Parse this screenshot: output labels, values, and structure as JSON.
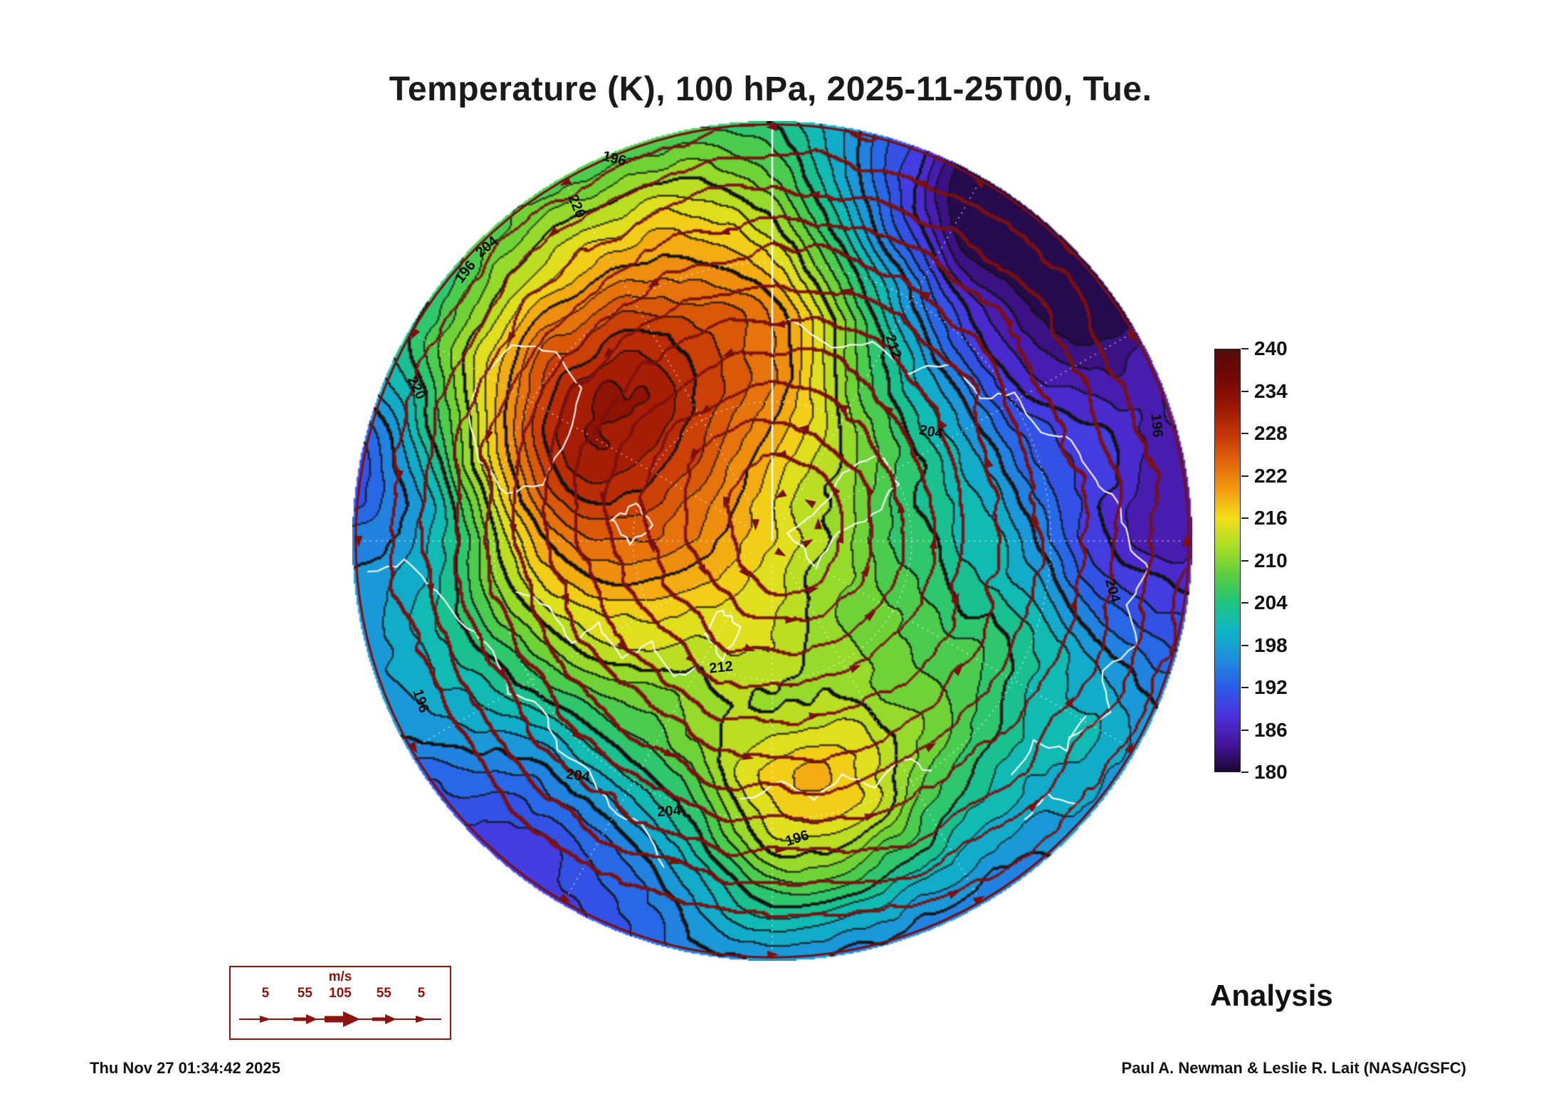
{
  "title": "Temperature (K), 100 hPa, 2025-11-25T00, Tue.",
  "analysis_label": "Analysis",
  "footer": {
    "timestamp": "Thu Nov 27 01:34:42 2025",
    "credit": "Paul A. Newman & Leslie R. Lait (NASA/GSFC)"
  },
  "wind_legend": {
    "unit": "m/s",
    "values": [
      "5",
      "55",
      "105",
      "55",
      "5"
    ]
  },
  "colorbar": {
    "ticks": [
      "240",
      "234",
      "228",
      "222",
      "216",
      "210",
      "204",
      "198",
      "192",
      "186",
      "180"
    ],
    "min": 180,
    "max": 240
  },
  "chart_data": {
    "type": "heatmap",
    "title": "Temperature (K), 100 hPa, 2025-11-25T00, Tue.",
    "quantity": "Temperature",
    "units": "K",
    "level": "100 hPa",
    "valid_time": "2025-11-25T00, Tue.",
    "product": "Analysis",
    "projection": "north-polar-stereographic",
    "colorbar_ticks": [
      240,
      234,
      228,
      222,
      216,
      210,
      204,
      198,
      192,
      186,
      180
    ],
    "value_range": [
      180,
      240
    ],
    "contour_interval_K": 2,
    "labeled_contour_levels_K": [
      196,
      204,
      212,
      220
    ],
    "wind_scale_ms": [
      5,
      55,
      105,
      55,
      5
    ],
    "wind_units": "m/s",
    "wind_color": "#7a1010",
    "coastline_color": "#ffffff",
    "colormap": [
      [
        180,
        "#1b0733"
      ],
      [
        184,
        "#46149e"
      ],
      [
        188,
        "#4b32dd"
      ],
      [
        192,
        "#2b5ce8"
      ],
      [
        196,
        "#1f8ede"
      ],
      [
        200,
        "#0db6c3"
      ],
      [
        204,
        "#1ec47e"
      ],
      [
        208,
        "#5ccf3e"
      ],
      [
        212,
        "#a9de25"
      ],
      [
        216,
        "#f2df1b"
      ],
      [
        220,
        "#f39c10"
      ],
      [
        224,
        "#e2650a"
      ],
      [
        228,
        "#c33406"
      ],
      [
        232,
        "#9a1504"
      ],
      [
        236,
        "#730705"
      ],
      [
        240,
        "#550b0b"
      ]
    ],
    "field": {
      "base": 210,
      "edge_cooling": 10,
      "blobs": [
        {
          "x": -0.38,
          "y": -0.3,
          "sigma": 0.4,
          "amp": 16
        },
        {
          "x": -0.48,
          "y": -0.28,
          "sigma": 0.18,
          "amp": 6
        },
        {
          "x": -0.05,
          "y": -0.62,
          "sigma": 0.3,
          "amp": 6
        },
        {
          "x": 0.12,
          "y": 0.7,
          "sigma": 0.2,
          "amp": 15
        },
        {
          "x": 0.6,
          "y": -0.72,
          "sigma": 0.3,
          "amp": -26
        },
        {
          "x": 0.97,
          "y": -0.05,
          "sigma": 0.25,
          "amp": -16
        },
        {
          "x": -0.93,
          "y": -0.15,
          "sigma": 0.22,
          "amp": -14
        },
        {
          "x": -0.55,
          "y": 0.72,
          "sigma": 0.3,
          "amp": -12
        },
        {
          "x": 0.25,
          "y": 0.92,
          "sigma": 0.28,
          "amp": -10
        },
        {
          "x": 0.4,
          "y": -0.05,
          "sigma": 0.26,
          "amp": -8
        }
      ]
    },
    "streamlines": {
      "center": [
        0.06,
        -0.04
      ],
      "level_start": 0.1,
      "level_step": 0.077,
      "count": 12
    },
    "contour_labels": [
      {
        "text": "196",
        "x": 0.312,
        "y": 0.045,
        "rot": 14
      },
      {
        "text": "220",
        "x": 0.267,
        "y": 0.102,
        "rot": 68
      },
      {
        "text": "204",
        "x": 0.16,
        "y": 0.15,
        "rot": -40
      },
      {
        "text": "196",
        "x": 0.135,
        "y": 0.18,
        "rot": -52
      },
      {
        "text": "220",
        "x": 0.076,
        "y": 0.318,
        "rot": 64
      },
      {
        "text": "212",
        "x": 0.644,
        "y": 0.269,
        "rot": 72
      },
      {
        "text": "204",
        "x": 0.689,
        "y": 0.37,
        "rot": 10
      },
      {
        "text": "196",
        "x": 0.958,
        "y": 0.363,
        "rot": 85
      },
      {
        "text": "204",
        "x": 0.905,
        "y": 0.559,
        "rot": 75
      },
      {
        "text": "212",
        "x": 0.439,
        "y": 0.651,
        "rot": -6
      },
      {
        "text": "204",
        "x": 0.269,
        "y": 0.78,
        "rot": 8
      },
      {
        "text": "196",
        "x": 0.081,
        "y": 0.691,
        "rot": 72
      },
      {
        "text": "204",
        "x": 0.377,
        "y": 0.822,
        "rot": -4
      },
      {
        "text": "196",
        "x": 0.53,
        "y": 0.854,
        "rot": -18
      }
    ],
    "coastlines": [
      [
        [
          -0.7,
          -0.38
        ],
        [
          -0.62,
          -0.47
        ],
        [
          -0.52,
          -0.45
        ],
        [
          -0.46,
          -0.36
        ],
        [
          -0.49,
          -0.25
        ],
        [
          -0.55,
          -0.14
        ],
        [
          -0.63,
          -0.11
        ],
        [
          -0.7,
          -0.19
        ],
        [
          -0.73,
          -0.3
        ],
        [
          -0.7,
          -0.38
        ]
      ],
      [
        [
          -0.38,
          -0.05
        ],
        [
          -0.33,
          -0.09
        ],
        [
          -0.29,
          -0.04
        ],
        [
          -0.34,
          0.01
        ],
        [
          -0.38,
          -0.05
        ]
      ],
      [
        [
          -0.97,
          0.08
        ],
        [
          -0.88,
          0.05
        ],
        [
          -0.8,
          0.12
        ],
        [
          -0.73,
          0.21
        ],
        [
          -0.67,
          0.26
        ],
        [
          -0.63,
          0.36
        ],
        [
          -0.55,
          0.4
        ],
        [
          -0.51,
          0.5
        ],
        [
          -0.44,
          0.55
        ],
        [
          -0.39,
          0.64
        ],
        [
          -0.31,
          0.68
        ],
        [
          -0.26,
          0.78
        ]
      ],
      [
        [
          -0.61,
          0.12
        ],
        [
          -0.53,
          0.16
        ],
        [
          -0.48,
          0.24
        ],
        [
          -0.42,
          0.2
        ],
        [
          -0.36,
          0.28
        ],
        [
          -0.29,
          0.24
        ],
        [
          -0.24,
          0.33
        ],
        [
          -0.18,
          0.3
        ]
      ],
      [
        [
          0.04,
          -0.53
        ],
        [
          0.14,
          -0.46
        ],
        [
          0.24,
          -0.48
        ],
        [
          0.33,
          -0.4
        ],
        [
          0.42,
          -0.43
        ],
        [
          0.5,
          -0.34
        ],
        [
          0.58,
          -0.36
        ],
        [
          0.64,
          -0.26
        ],
        [
          0.72,
          -0.24
        ],
        [
          0.77,
          -0.14
        ],
        [
          0.83,
          -0.1
        ],
        [
          0.85,
          0.0
        ],
        [
          0.9,
          0.07
        ],
        [
          0.85,
          0.15
        ],
        [
          0.87,
          0.25
        ],
        [
          0.79,
          0.31
        ],
        [
          0.81,
          0.41
        ],
        [
          0.71,
          0.47
        ]
      ],
      [
        [
          -0.16,
          0.22
        ],
        [
          -0.12,
          0.16
        ],
        [
          -0.08,
          0.21
        ],
        [
          -0.12,
          0.28
        ],
        [
          -0.16,
          0.22
        ]
      ],
      [
        [
          -0.07,
          0.62
        ],
        [
          0.02,
          0.57
        ],
        [
          0.1,
          0.62
        ],
        [
          0.17,
          0.56
        ],
        [
          0.24,
          0.59
        ],
        [
          0.31,
          0.52
        ],
        [
          0.38,
          0.55
        ]
      ],
      [
        [
          0.1,
          0.06
        ],
        [
          0.16,
          -0.02
        ],
        [
          0.24,
          -0.06
        ],
        [
          0.3,
          -0.14
        ],
        [
          0.25,
          -0.21
        ],
        [
          0.17,
          -0.16
        ],
        [
          0.12,
          -0.08
        ],
        [
          0.04,
          -0.02
        ],
        [
          0.1,
          0.06
        ]
      ],
      [
        [
          0.57,
          0.56
        ],
        [
          0.63,
          0.48
        ],
        [
          0.7,
          0.5
        ],
        [
          0.75,
          0.42
        ]
      ],
      [
        [
          0.6,
          0.67
        ],
        [
          0.66,
          0.61
        ],
        [
          0.73,
          0.63
        ]
      ]
    ]
  }
}
